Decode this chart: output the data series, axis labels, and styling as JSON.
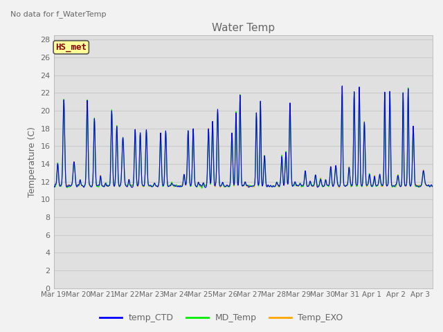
{
  "title": "Water Temp",
  "ylabel": "Temperature (C)",
  "no_data_text": "No data for f_WaterTemp",
  "hs_met_label": "HS_met",
  "yticks": [
    0,
    2,
    4,
    6,
    8,
    10,
    12,
    14,
    16,
    18,
    20,
    22,
    24,
    26,
    28
  ],
  "ylim": [
    0,
    28.5
  ],
  "xtick_labels": [
    "Mar 19",
    "Mar 20",
    "Mar 21",
    "Mar 22",
    "Mar 23",
    "Mar 24",
    "Mar 25",
    "Mar 26",
    "Mar 27",
    "Mar 28",
    "Mar 29",
    "Mar 30",
    "Mar 31",
    "Apr 1",
    "Apr 2",
    "Apr 3"
  ],
  "legend_entries": [
    {
      "label": "temp_CTD",
      "color": "#0000FF"
    },
    {
      "label": "MD_Temp",
      "color": "#00EE00"
    },
    {
      "label": "Temp_EXO",
      "color": "#FFA500"
    }
  ],
  "fig_bg_color": "#F2F2F2",
  "plot_bg_color": "#E0E0E0",
  "grid_color": "#CCCCCC",
  "hs_met_box_color": "#FFFF99",
  "hs_met_text_color": "#880000",
  "hs_met_border_color": "#555555",
  "title_color": "#666666",
  "label_color": "#666666",
  "tick_color": "#666666"
}
